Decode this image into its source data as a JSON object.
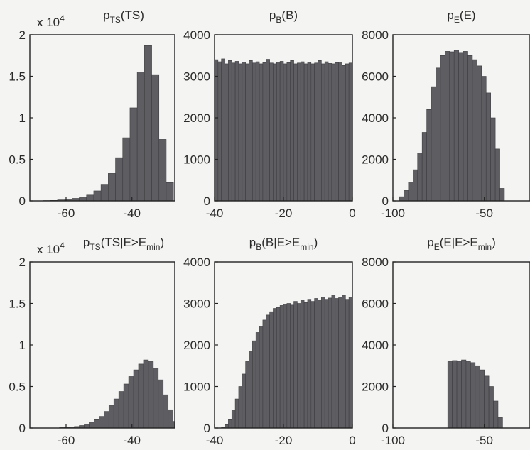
{
  "chart_data": [
    {
      "type": "bar",
      "panel": "top-left",
      "title_parts": [
        {
          "t": "p"
        },
        {
          "t": "TS",
          "sub": true
        },
        {
          "t": "(TS)"
        }
      ],
      "multiplier": "x 10",
      "multiplier_exp": "4",
      "xlim": [
        -71,
        -27
      ],
      "ylim": [
        0,
        2
      ],
      "xticks": [
        -60,
        -40
      ],
      "xtick_labels": [
        "-60",
        "-40"
      ],
      "yticks": [
        0,
        0.5,
        1,
        1.5,
        2
      ],
      "ytick_labels": [
        "0",
        "0.5",
        "1",
        "1.5",
        "2"
      ],
      "bins": {
        "start": -67,
        "width": 2.2
      },
      "values": [
        0.004,
        0.006,
        0.012,
        0.02,
        0.03,
        0.045,
        0.07,
        0.12,
        0.2,
        0.33,
        0.52,
        0.76,
        1.12,
        1.55,
        1.87,
        1.52,
        0.74,
        0.22
      ]
    },
    {
      "type": "bar",
      "panel": "top-middle",
      "title_parts": [
        {
          "t": "p"
        },
        {
          "t": "B",
          "sub": true
        },
        {
          "t": "(B)"
        }
      ],
      "xlim": [
        -40,
        0
      ],
      "ylim": [
        0,
        4000
      ],
      "xticks": [
        -40,
        -20,
        0
      ],
      "xtick_labels": [
        "-40",
        "-20",
        "0"
      ],
      "yticks": [
        0,
        1000,
        2000,
        3000,
        4000
      ],
      "ytick_labels": [
        "0",
        "1000",
        "2000",
        "3000",
        "4000"
      ],
      "bins": {
        "start": -40,
        "width": 1
      },
      "values": [
        3400,
        3350,
        3420,
        3300,
        3380,
        3320,
        3360,
        3300,
        3340,
        3300,
        3380,
        3320,
        3350,
        3300,
        3330,
        3410,
        3320,
        3300,
        3340,
        3360,
        3300,
        3330,
        3380,
        3300,
        3320,
        3350,
        3300,
        3340,
        3300,
        3320,
        3380,
        3300,
        3350,
        3310,
        3300,
        3330,
        3340,
        3260,
        3300,
        3320
      ]
    },
    {
      "type": "bar",
      "panel": "top-right",
      "title_parts": [
        {
          "t": "p"
        },
        {
          "t": "E",
          "sub": true
        },
        {
          "t": "(E)"
        }
      ],
      "xlim": [
        -100,
        -25
      ],
      "ylim": [
        0,
        8000
      ],
      "xticks": [
        -100,
        -50
      ],
      "xtick_labels": [
        "-100",
        "-50"
      ],
      "yticks": [
        0,
        2000,
        4000,
        6000,
        8000
      ],
      "ytick_labels": [
        "0",
        "2000",
        "4000",
        "6000",
        "8000"
      ],
      "bins": {
        "start": -96.5,
        "width": 2.5
      },
      "values": [
        200,
        500,
        900,
        1500,
        2300,
        3300,
        4400,
        5500,
        6400,
        7000,
        7200,
        7180,
        7250,
        7150,
        7200,
        7000,
        6800,
        6500,
        6000,
        5200,
        4000,
        2500,
        600
      ]
    },
    {
      "type": "bar",
      "panel": "bottom-left",
      "title_parts": [
        {
          "t": "p"
        },
        {
          "t": "TS",
          "sub": true
        },
        {
          "t": "(TS|E>E"
        },
        {
          "t": "min",
          "sub": true
        },
        {
          "t": ")"
        }
      ],
      "multiplier": "x 10",
      "multiplier_exp": "4",
      "xlim": [
        -71,
        -27
      ],
      "ylim": [
        0,
        2
      ],
      "xticks": [
        -60,
        -40
      ],
      "xtick_labels": [
        "-60",
        "-40"
      ],
      "yticks": [
        0,
        0.5,
        1,
        1.5,
        2
      ],
      "ytick_labels": [
        "0",
        "0.5",
        "1",
        "1.5",
        "2"
      ],
      "bins": {
        "start": -62,
        "width": 1.5
      },
      "values": [
        0.005,
        0.008,
        0.012,
        0.018,
        0.03,
        0.045,
        0.07,
        0.1,
        0.14,
        0.2,
        0.27,
        0.35,
        0.44,
        0.53,
        0.62,
        0.7,
        0.77,
        0.82,
        0.8,
        0.72,
        0.58,
        0.4,
        0.22,
        0.08
      ]
    },
    {
      "type": "bar",
      "panel": "bottom-middle",
      "title_parts": [
        {
          "t": "p"
        },
        {
          "t": "B",
          "sub": true
        },
        {
          "t": "(B|E>E"
        },
        {
          "t": "min",
          "sub": true
        },
        {
          "t": ")"
        }
      ],
      "xlim": [
        -40,
        0
      ],
      "ylim": [
        0,
        4000
      ],
      "xticks": [
        -40,
        -20,
        0
      ],
      "xtick_labels": [
        "-40",
        "-20",
        "0"
      ],
      "yticks": [
        0,
        1000,
        2000,
        3000,
        4000
      ],
      "ytick_labels": [
        "0",
        "1000",
        "2000",
        "3000",
        "4000"
      ],
      "bins": {
        "start": -40,
        "width": 1
      },
      "values": [
        0,
        0,
        20,
        80,
        200,
        420,
        700,
        1000,
        1300,
        1600,
        1850,
        2100,
        2300,
        2450,
        2600,
        2720,
        2800,
        2880,
        2900,
        2950,
        2980,
        3000,
        2960,
        3050,
        3000,
        3080,
        3020,
        3100,
        3050,
        3120,
        3080,
        3150,
        3100,
        3130,
        3200,
        3120,
        3150,
        3200,
        3100,
        3150
      ]
    },
    {
      "type": "bar",
      "panel": "bottom-right",
      "title_parts": [
        {
          "t": "p"
        },
        {
          "t": "E",
          "sub": true
        },
        {
          "t": "(E|E>E"
        },
        {
          "t": "min",
          "sub": true
        },
        {
          "t": ")"
        }
      ],
      "xlim": [
        -100,
        -25
      ],
      "ylim": [
        0,
        8000
      ],
      "xticks": [
        -100,
        -50
      ],
      "xtick_labels": [
        "-100",
        "-50"
      ],
      "yticks": [
        0,
        2000,
        4000,
        6000,
        8000
      ],
      "ytick_labels": [
        "0",
        "2000",
        "4000",
        "6000",
        "8000"
      ],
      "bins": {
        "start": -70,
        "width": 2.5
      },
      "values": [
        3200,
        3250,
        3200,
        3280,
        3200,
        3150,
        3000,
        2800,
        2500,
        2000,
        1300,
        500
      ]
    }
  ]
}
